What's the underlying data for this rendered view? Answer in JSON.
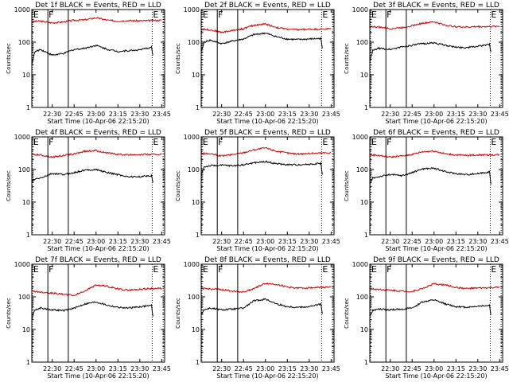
{
  "chart_data": [
    {
      "type": "line",
      "title": "Det 1f BLACK = Events, RED = LLD",
      "xlabel": "Start Time (10-Apr-06 22:15:20)",
      "ylabel": "Counts/sec",
      "yscale": "log",
      "ylim": [
        1,
        1000
      ],
      "xticklabels": [
        "22:30",
        "22:45",
        "23:00",
        "23:15",
        "23:30",
        "23:45"
      ],
      "yticklabels": [
        "1",
        "10",
        "100",
        "1000"
      ],
      "markers": [
        {
          "label": "E",
          "style": "dotted"
        },
        {
          "label": "F",
          "style": "solid"
        },
        {
          "label": "",
          "style": "solid"
        },
        {
          "label": "E",
          "style": "dotted"
        },
        {
          "label": "",
          "style": "dotted"
        }
      ],
      "series": [
        {
          "color": "#cc0000",
          "x": [
            "22:16",
            "22:22",
            "22:30",
            "22:38",
            "22:45",
            "22:52",
            "23:00",
            "23:08",
            "23:15",
            "23:22",
            "23:30",
            "23:38",
            "23:45"
          ],
          "values": [
            430,
            440,
            390,
            420,
            470,
            480,
            560,
            470,
            440,
            460,
            450,
            460,
            470
          ]
        },
        {
          "color": "#000000",
          "x": [
            "22:16",
            "22:18",
            "22:22",
            "22:30",
            "22:38",
            "22:45",
            "22:52",
            "23:00",
            "23:08",
            "23:15",
            "23:22",
            "23:30",
            "23:38",
            "23:39"
          ],
          "values": [
            20,
            50,
            60,
            40,
            45,
            60,
            65,
            80,
            60,
            52,
            55,
            58,
            70,
            40
          ]
        }
      ]
    },
    {
      "type": "line",
      "title": "Det 2f BLACK = Events, RED = LLD",
      "xlabel": "Start Time (10-Apr-06 22:15:20)",
      "ylabel": "Counts/sec",
      "yscale": "log",
      "ylim": [
        1,
        1000
      ],
      "xticklabels": [
        "22:30",
        "22:45",
        "23:00",
        "23:15",
        "23:30",
        "23:45"
      ],
      "yticklabels": [
        "1",
        "10",
        "100",
        "1000"
      ],
      "markers": [
        {
          "label": "E",
          "style": "dotted"
        },
        {
          "label": "F",
          "style": "solid"
        },
        {
          "label": "",
          "style": "solid"
        },
        {
          "label": "E",
          "style": "dotted"
        },
        {
          "label": "",
          "style": "dotted"
        }
      ],
      "series": [
        {
          "color": "#cc0000",
          "x": [
            "22:16",
            "22:22",
            "22:30",
            "22:38",
            "22:45",
            "22:52",
            "23:00",
            "23:08",
            "23:15",
            "23:22",
            "23:30",
            "23:38",
            "23:45"
          ],
          "values": [
            250,
            240,
            200,
            230,
            260,
            330,
            360,
            280,
            250,
            240,
            250,
            250,
            260
          ]
        },
        {
          "color": "#000000",
          "x": [
            "22:16",
            "22:18",
            "22:22",
            "22:30",
            "22:38",
            "22:45",
            "22:52",
            "23:00",
            "23:08",
            "23:15",
            "23:22",
            "23:30",
            "23:38",
            "23:39"
          ],
          "values": [
            50,
            100,
            115,
            90,
            110,
            125,
            170,
            190,
            145,
            125,
            120,
            125,
            130,
            65
          ]
        }
      ]
    },
    {
      "type": "line",
      "title": "Det 3f BLACK = Events, RED = LLD",
      "xlabel": "Start Time (10-Apr-06 22:15:20)",
      "ylabel": "Counts/sec",
      "yscale": "log",
      "ylim": [
        1,
        1000
      ],
      "xticklabels": [
        "22:30",
        "22:45",
        "23:00",
        "23:15",
        "23:30",
        "23:45"
      ],
      "yticklabels": [
        "1",
        "10",
        "100",
        "1000"
      ],
      "markers": [
        {
          "label": "E",
          "style": "dotted"
        },
        {
          "label": "F",
          "style": "solid"
        },
        {
          "label": "",
          "style": "solid"
        },
        {
          "label": "E",
          "style": "dotted"
        },
        {
          "label": "",
          "style": "dotted"
        }
      ],
      "series": [
        {
          "color": "#cc0000",
          "x": [
            "22:16",
            "22:22",
            "22:30",
            "22:38",
            "22:45",
            "22:52",
            "23:00",
            "23:08",
            "23:15",
            "23:22",
            "23:30",
            "23:38",
            "23:45"
          ],
          "values": [
            300,
            290,
            260,
            280,
            320,
            380,
            420,
            330,
            300,
            290,
            300,
            300,
            310
          ]
        },
        {
          "color": "#000000",
          "x": [
            "22:16",
            "22:18",
            "22:22",
            "22:30",
            "22:38",
            "22:45",
            "22:52",
            "23:00",
            "23:08",
            "23:15",
            "23:22",
            "23:30",
            "23:38",
            "23:39"
          ],
          "values": [
            25,
            55,
            65,
            60,
            72,
            80,
            90,
            95,
            80,
            70,
            68,
            75,
            85,
            50
          ]
        }
      ]
    },
    {
      "type": "line",
      "title": "Det 4f BLACK = Events, RED = LLD",
      "xlabel": "Start Time (10-Apr-06 22:15:20)",
      "ylabel": "Counts/sec",
      "yscale": "log",
      "ylim": [
        1,
        1000
      ],
      "xticklabels": [
        "22:30",
        "22:45",
        "23:00",
        "23:15",
        "23:30",
        "23:45"
      ],
      "yticklabels": [
        "1",
        "10",
        "100",
        "1000"
      ],
      "markers": [
        {
          "label": "E",
          "style": "dotted"
        },
        {
          "label": "F",
          "style": "solid"
        },
        {
          "label": "",
          "style": "solid"
        },
        {
          "label": "E",
          "style": "dotted"
        },
        {
          "label": "",
          "style": "dotted"
        }
      ],
      "series": [
        {
          "color": "#cc0000",
          "x": [
            "22:16",
            "22:22",
            "22:30",
            "22:38",
            "22:45",
            "22:52",
            "23:00",
            "23:08",
            "23:15",
            "23:22",
            "23:30",
            "23:38",
            "23:45"
          ],
          "values": [
            290,
            280,
            240,
            270,
            300,
            360,
            380,
            320,
            290,
            280,
            290,
            290,
            295
          ]
        },
        {
          "color": "#000000",
          "x": [
            "22:16",
            "22:18",
            "22:22",
            "22:30",
            "22:38",
            "22:45",
            "22:52",
            "23:00",
            "23:08",
            "23:15",
            "23:22",
            "23:30",
            "23:38",
            "23:39"
          ],
          "values": [
            40,
            50,
            55,
            75,
            70,
            80,
            95,
            100,
            80,
            70,
            60,
            60,
            65,
            40
          ]
        }
      ]
    },
    {
      "type": "line",
      "title": "Det 5f BLACK = Events, RED = LLD",
      "xlabel": "Start Time (10-Apr-06 22:15:20)",
      "ylabel": "Counts/sec",
      "yscale": "log",
      "ylim": [
        1,
        1000
      ],
      "xticklabels": [
        "22:30",
        "22:45",
        "23:00",
        "23:15",
        "23:30",
        "23:45"
      ],
      "yticklabels": [
        "1",
        "10",
        "100",
        "1000"
      ],
      "markers": [
        {
          "label": "E",
          "style": "dotted"
        },
        {
          "label": "F",
          "style": "solid"
        },
        {
          "label": "",
          "style": "solid"
        },
        {
          "label": "E",
          "style": "dotted"
        },
        {
          "label": "",
          "style": "dotted"
        }
      ],
      "series": [
        {
          "color": "#cc0000",
          "x": [
            "22:16",
            "22:22",
            "22:30",
            "22:38",
            "22:45",
            "22:52",
            "23:00",
            "23:08",
            "23:15",
            "23:22",
            "23:30",
            "23:38",
            "23:45"
          ],
          "values": [
            310,
            300,
            260,
            290,
            330,
            400,
            460,
            360,
            320,
            300,
            310,
            320,
            330
          ]
        },
        {
          "color": "#000000",
          "x": [
            "22:16",
            "22:18",
            "22:22",
            "22:30",
            "22:38",
            "22:45",
            "22:52",
            "23:00",
            "23:08",
            "23:15",
            "23:22",
            "23:30",
            "23:38",
            "23:39"
          ],
          "values": [
            70,
            120,
            130,
            135,
            130,
            140,
            160,
            175,
            150,
            140,
            140,
            145,
            155,
            70
          ]
        }
      ]
    },
    {
      "type": "line",
      "title": "Det 6f BLACK = Events, RED = LLD",
      "xlabel": "Start Time (10-Apr-06 22:15:20)",
      "ylabel": "Counts/sec",
      "yscale": "log",
      "ylim": [
        1,
        1000
      ],
      "xticklabels": [
        "22:30",
        "22:45",
        "23:00",
        "23:15",
        "23:30",
        "23:45"
      ],
      "yticklabels": [
        "1",
        "10",
        "100",
        "1000"
      ],
      "markers": [
        {
          "label": "E",
          "style": "dotted"
        },
        {
          "label": "F",
          "style": "solid"
        },
        {
          "label": "",
          "style": "solid"
        },
        {
          "label": "E",
          "style": "dotted"
        },
        {
          "label": "",
          "style": "dotted"
        }
      ],
      "series": [
        {
          "color": "#cc0000",
          "x": [
            "22:16",
            "22:22",
            "22:30",
            "22:38",
            "22:45",
            "22:52",
            "23:00",
            "23:08",
            "23:15",
            "23:22",
            "23:30",
            "23:38",
            "23:45"
          ],
          "values": [
            280,
            270,
            240,
            260,
            290,
            350,
            370,
            300,
            280,
            270,
            280,
            280,
            285
          ]
        },
        {
          "color": "#000000",
          "x": [
            "22:16",
            "22:18",
            "22:22",
            "22:30",
            "22:38",
            "22:45",
            "22:52",
            "23:00",
            "23:08",
            "23:15",
            "23:22",
            "23:30",
            "23:38",
            "23:39"
          ],
          "values": [
            35,
            55,
            60,
            70,
            65,
            80,
            105,
            110,
            85,
            75,
            70,
            75,
            85,
            35
          ]
        }
      ]
    },
    {
      "type": "line",
      "title": "Det 7f BLACK = Events, RED = LLD",
      "xlabel": "Start Time (10-Apr-06 22:15:20)",
      "ylabel": "Counts/sec",
      "yscale": "log",
      "ylim": [
        1,
        1000
      ],
      "xticklabels": [
        "22:30",
        "22:45",
        "23:00",
        "23:15",
        "23:30",
        "23:45"
      ],
      "yticklabels": [
        "1",
        "10",
        "100",
        "1000"
      ],
      "markers": [
        {
          "label": "E",
          "style": "dotted"
        },
        {
          "label": "F",
          "style": "solid"
        },
        {
          "label": "",
          "style": "solid"
        },
        {
          "label": "E",
          "style": "dotted"
        },
        {
          "label": "",
          "style": "dotted"
        }
      ],
      "series": [
        {
          "color": "#cc0000",
          "x": [
            "22:16",
            "22:22",
            "22:30",
            "22:38",
            "22:45",
            "22:52",
            "23:00",
            "23:08",
            "23:15",
            "23:22",
            "23:30",
            "23:38",
            "23:45"
          ],
          "values": [
            150,
            140,
            130,
            120,
            110,
            150,
            230,
            210,
            175,
            160,
            170,
            180,
            180
          ]
        },
        {
          "color": "#000000",
          "x": [
            "22:16",
            "22:18",
            "22:22",
            "22:30",
            "22:38",
            "22:45",
            "22:52",
            "23:00",
            "23:08",
            "23:15",
            "23:22",
            "23:30",
            "23:38",
            "23:39"
          ],
          "values": [
            20,
            40,
            45,
            40,
            38,
            45,
            60,
            70,
            55,
            48,
            45,
            50,
            55,
            25
          ]
        }
      ]
    },
    {
      "type": "line",
      "title": "Det 8f BLACK = Events, RED = LLD",
      "xlabel": "Start Time (10-Apr-06 22:15:20)",
      "ylabel": "Counts/sec",
      "yscale": "log",
      "ylim": [
        1,
        1000
      ],
      "xticklabels": [
        "22:30",
        "22:45",
        "23:00",
        "23:15",
        "23:30",
        "23:45"
      ],
      "yticklabels": [
        "1",
        "10",
        "100",
        "1000"
      ],
      "markers": [
        {
          "label": "E",
          "style": "dotted"
        },
        {
          "label": "F",
          "style": "solid"
        },
        {
          "label": "",
          "style": "solid"
        },
        {
          "label": "E",
          "style": "dotted"
        },
        {
          "label": "",
          "style": "dotted"
        }
      ],
      "series": [
        {
          "color": "#cc0000",
          "x": [
            "22:16",
            "22:22",
            "22:30",
            "22:38",
            "22:45",
            "22:52",
            "23:00",
            "23:08",
            "23:15",
            "23:22",
            "23:30",
            "23:38",
            "23:45"
          ],
          "values": [
            180,
            175,
            165,
            150,
            140,
            180,
            260,
            240,
            200,
            185,
            190,
            195,
            200
          ]
        },
        {
          "color": "#000000",
          "x": [
            "22:16",
            "22:18",
            "22:22",
            "22:30",
            "22:38",
            "22:45",
            "22:52",
            "23:00",
            "23:08",
            "23:15",
            "23:22",
            "23:30",
            "23:38",
            "23:39"
          ],
          "values": [
            30,
            40,
            45,
            40,
            42,
            45,
            75,
            85,
            60,
            50,
            48,
            50,
            60,
            30
          ]
        }
      ]
    },
    {
      "type": "line",
      "title": "Det 9f BLACK = Events, RED = LLD",
      "xlabel": "Start Time (10-Apr-06 22:15:20)",
      "ylabel": "Counts/sec",
      "yscale": "log",
      "ylim": [
        1,
        1000
      ],
      "xticklabels": [
        "22:30",
        "22:45",
        "23:00",
        "23:15",
        "23:30",
        "23:45"
      ],
      "yticklabels": [
        "1",
        "10",
        "100",
        "1000"
      ],
      "markers": [
        {
          "label": "E",
          "style": "dotted"
        },
        {
          "label": "F",
          "style": "solid"
        },
        {
          "label": "",
          "style": "solid"
        },
        {
          "label": "E",
          "style": "dotted"
        },
        {
          "label": "",
          "style": "dotted"
        }
      ],
      "series": [
        {
          "color": "#cc0000",
          "x": [
            "22:16",
            "22:22",
            "22:30",
            "22:38",
            "22:45",
            "22:52",
            "23:00",
            "23:08",
            "23:15",
            "23:22",
            "23:30",
            "23:38",
            "23:45"
          ],
          "values": [
            175,
            170,
            160,
            150,
            145,
            180,
            250,
            230,
            195,
            180,
            185,
            190,
            195
          ]
        },
        {
          "color": "#000000",
          "x": [
            "22:16",
            "22:18",
            "22:22",
            "22:30",
            "22:38",
            "22:45",
            "22:52",
            "23:00",
            "23:08",
            "23:15",
            "23:22",
            "23:30",
            "23:38",
            "23:39"
          ],
          "values": [
            25,
            38,
            42,
            40,
            42,
            45,
            70,
            80,
            60,
            50,
            48,
            52,
            55,
            28
          ]
        }
      ]
    }
  ]
}
